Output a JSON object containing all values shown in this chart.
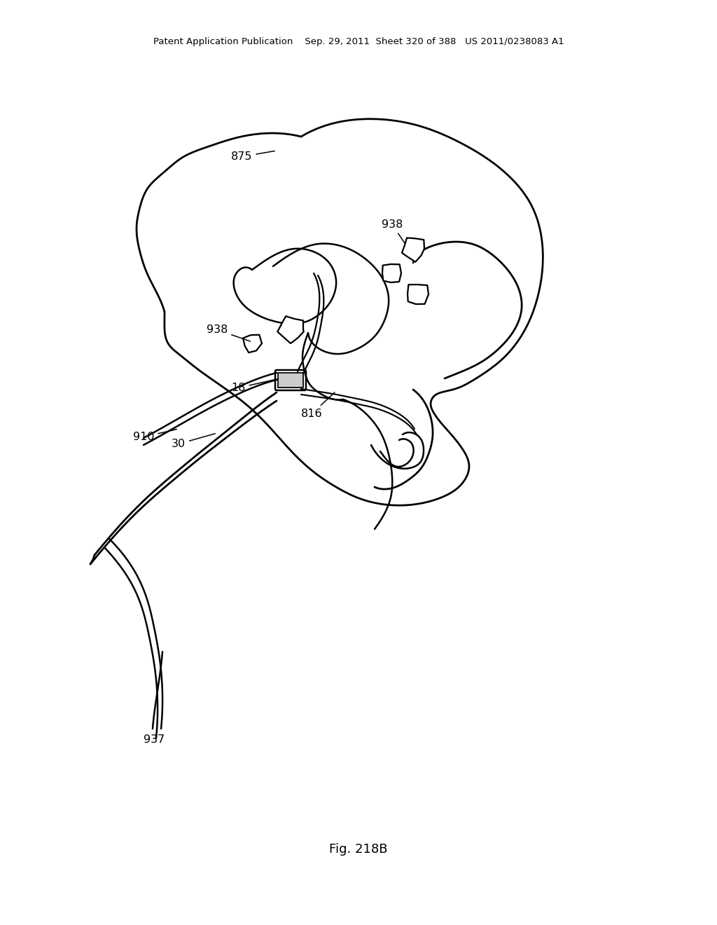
{
  "bg_color": "#ffffff",
  "line_color": "#000000",
  "lw": 1.8,
  "header": "Patent Application Publication    Sep. 29, 2011  Sheet 320 of 388   US 2011/0238083 A1",
  "fig_label": "Fig. 218B"
}
